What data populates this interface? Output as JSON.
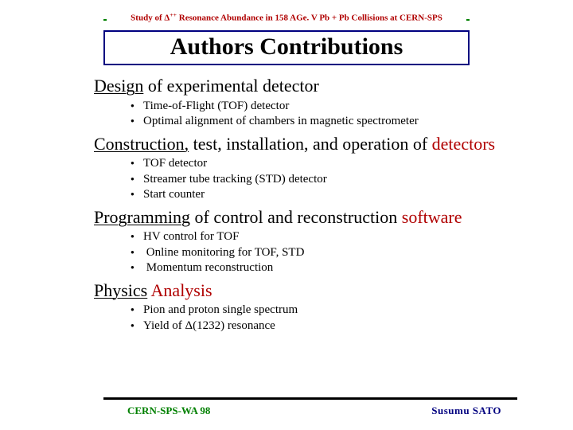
{
  "colors": {
    "red": "#b00000",
    "green": "#008000",
    "navy": "#000080",
    "black": "#000000",
    "white": "#ffffff"
  },
  "typography": {
    "base_family": "Times New Roman",
    "title_fontsize_pt": 30,
    "heading_fontsize_pt": 22,
    "body_fontsize_pt": 15,
    "caption_fontsize_pt": 11,
    "footer_fontsize_pt": 13
  },
  "top_caption": {
    "prefix": "Study of ",
    "delta": "Δ",
    "sup": "++",
    "suffix": " Resonance Abundance in 158 AGe. V Pb + Pb Collisions at CERN-SPS"
  },
  "title": "Authors Contributions",
  "sections": [
    {
      "heading_parts": [
        {
          "text": "Design",
          "underline": true,
          "red": false
        },
        {
          "text": " of experimental detector",
          "underline": false,
          "red": false
        }
      ],
      "items": [
        "Time-of-Flight (TOF) detector",
        "Optimal alignment of chambers in magnetic spectrometer"
      ]
    },
    {
      "heading_parts": [
        {
          "text": "Construction,",
          "underline": true,
          "red": false
        },
        {
          "text": " test, installation, and operation of ",
          "underline": false,
          "red": false
        },
        {
          "text": "detectors",
          "underline": false,
          "red": true
        }
      ],
      "items": [
        "TOF detector",
        "Streamer tube tracking (STD) detector",
        "Start counter"
      ]
    },
    {
      "heading_parts": [
        {
          "text": "Programming",
          "underline": true,
          "red": false
        },
        {
          "text": " of control and reconstruction ",
          "underline": false,
          "red": false
        },
        {
          "text": "software",
          "underline": false,
          "red": true
        }
      ],
      "items": [
        "HV control for TOF",
        " Online monitoring for TOF, STD",
        " Momentum reconstruction"
      ]
    },
    {
      "heading_parts": [
        {
          "text": "Physics",
          "underline": true,
          "red": false
        },
        {
          "text": " ",
          "underline": false,
          "red": false
        },
        {
          "text": "Analysis",
          "underline": false,
          "red": true
        }
      ],
      "items": [
        "Pion and proton single spectrum",
        "Yield of Δ(1232) resonance"
      ]
    }
  ],
  "footer": {
    "left": "CERN-SPS-WA 98",
    "right": "Susumu   SATO"
  }
}
